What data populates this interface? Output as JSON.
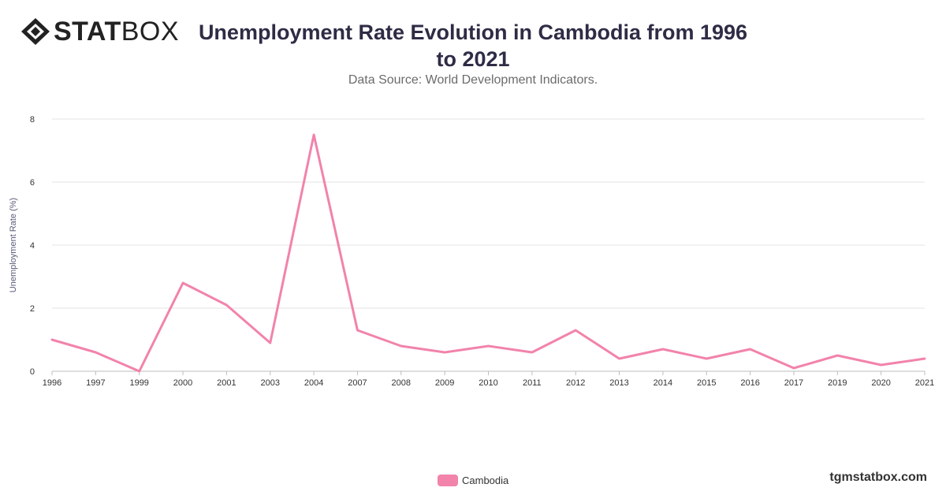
{
  "brand": {
    "stat": "STAT",
    "box": "BOX"
  },
  "title": "Unemployment Rate Evolution in Cambodia from 1996 to 2021",
  "subtitle": "Data Source: World Development Indicators.",
  "footer": {
    "site": "tgmstatbox.com"
  },
  "chart_data": {
    "type": "line",
    "title": "Unemployment Rate Evolution in Cambodia from 1996 to 2021",
    "subtitle": "Data Source: World Development Indicators.",
    "xlabel": "",
    "ylabel": "Unemployment Rate (%)",
    "ylim": [
      0,
      8
    ],
    "yticks": [
      0,
      2,
      4,
      6,
      8
    ],
    "grid": true,
    "legend_position": "bottom-center",
    "categories": [
      "1996",
      "1997",
      "1999",
      "2000",
      "2001",
      "2003",
      "2004",
      "2007",
      "2008",
      "2009",
      "2010",
      "2011",
      "2012",
      "2013",
      "2014",
      "2015",
      "2016",
      "2017",
      "2019",
      "2020",
      "2021"
    ],
    "series": [
      {
        "name": "Cambodia",
        "color": "#f283ab",
        "values": [
          1.0,
          0.6,
          0.0,
          2.8,
          2.1,
          0.9,
          7.5,
          1.3,
          0.8,
          0.6,
          0.8,
          0.6,
          1.3,
          0.4,
          0.7,
          0.4,
          0.7,
          0.1,
          0.5,
          0.2,
          0.4
        ]
      }
    ]
  }
}
